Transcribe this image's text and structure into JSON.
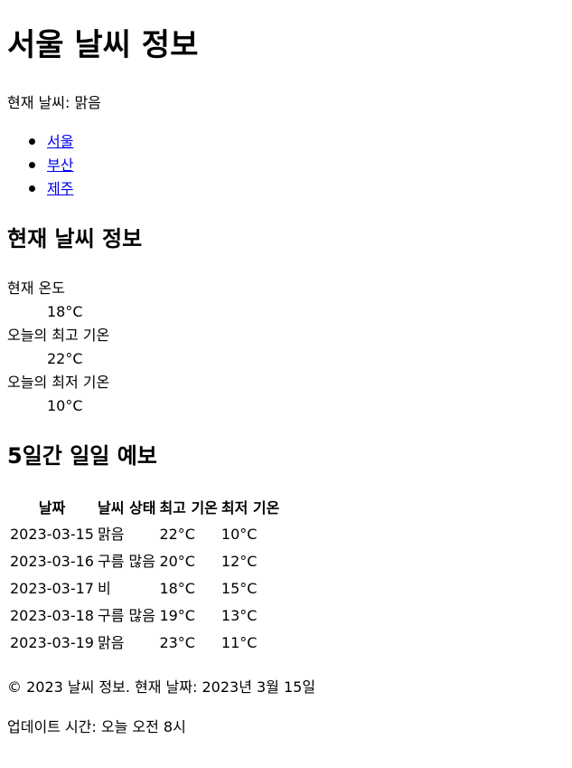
{
  "header": {
    "title": "서울 날씨 정보",
    "current_status": "현재 날씨: 맑음"
  },
  "nav": {
    "links": [
      {
        "label": "서울"
      },
      {
        "label": "부산"
      },
      {
        "label": "제주"
      }
    ]
  },
  "current": {
    "heading": "현재 날씨 정보",
    "items": [
      {
        "term": "현재 온도",
        "value": "18°C"
      },
      {
        "term": "오늘의 최고 기온",
        "value": "22°C"
      },
      {
        "term": "오늘의 최저 기온",
        "value": "10°C"
      }
    ]
  },
  "forecast": {
    "heading": "5일간 일일 예보",
    "columns": [
      "날짜",
      "날씨 상태",
      "최고 기온",
      "최저 기온"
    ],
    "rows": [
      [
        "2023-03-15",
        "맑음",
        "22°C",
        "10°C"
      ],
      [
        "2023-03-16",
        "구름 많음",
        "20°C",
        "12°C"
      ],
      [
        "2023-03-17",
        "비",
        "18°C",
        "15°C"
      ],
      [
        "2023-03-18",
        "구름 많음",
        "19°C",
        "13°C"
      ],
      [
        "2023-03-19",
        "맑음",
        "23°C",
        "11°C"
      ]
    ]
  },
  "footer": {
    "copyright": "© 2023 날씨 정보. 현재 날짜: 2023년 3월 15일",
    "updated": "업데이트 시간: 오늘 오전 8시"
  },
  "colors": {
    "text": "#000000",
    "link": "#0000EE",
    "background": "#ffffff"
  }
}
